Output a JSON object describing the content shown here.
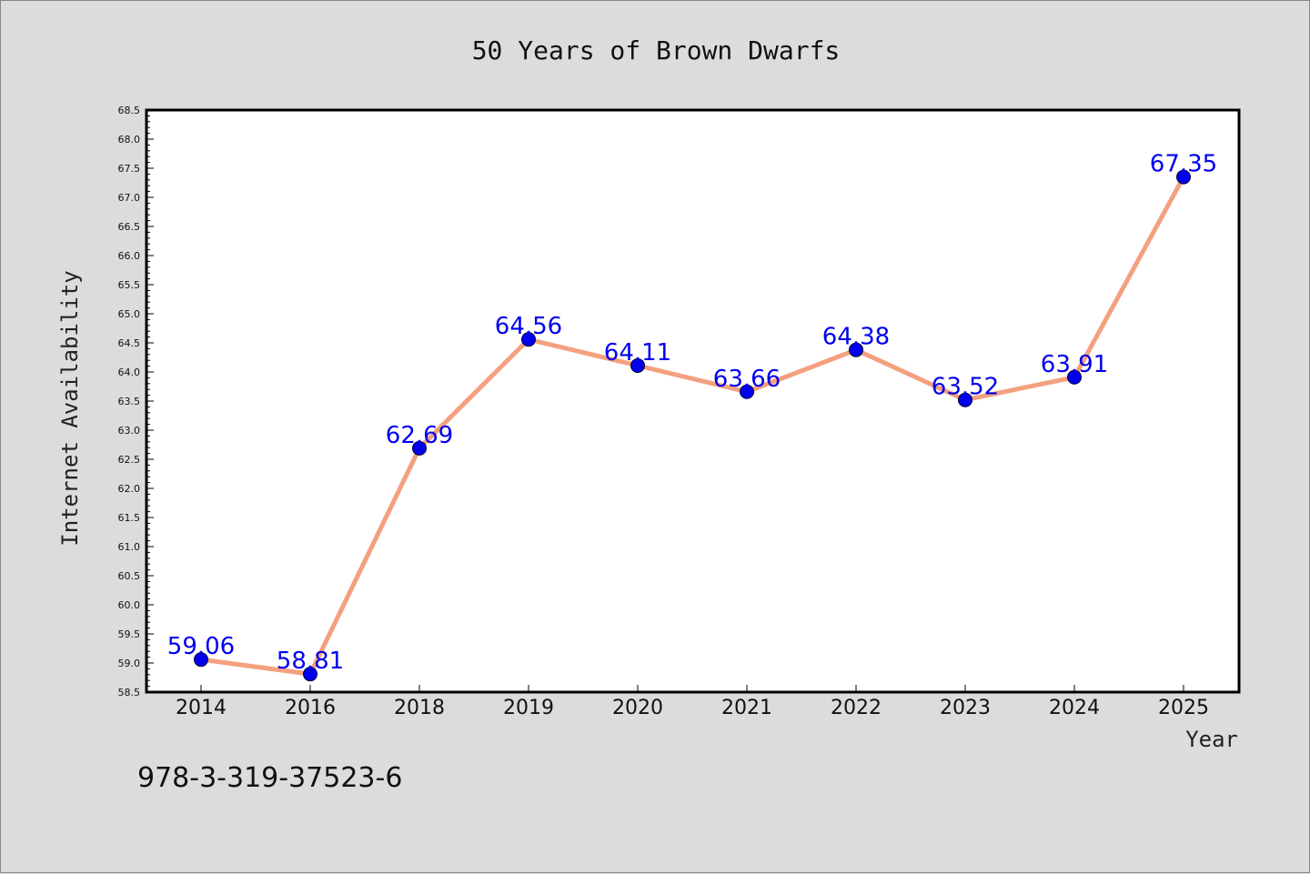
{
  "chart_data": {
    "type": "line",
    "title": "50 Years of Brown Dwarfs",
    "xlabel": "Year",
    "ylabel": "Internet Availability",
    "categories": [
      "2014",
      "2016",
      "2018",
      "2019",
      "2020",
      "2021",
      "2022",
      "2023",
      "2024",
      "2025"
    ],
    "series": [
      {
        "values": [
          59.06,
          58.81,
          62.69,
          64.56,
          64.11,
          63.66,
          64.38,
          63.52,
          63.91,
          67.35
        ],
        "line_color": "#f4a07f",
        "marker_color": "#0000ee",
        "label_color": "#0000ee"
      }
    ],
    "ylim": [
      58.5,
      68.5
    ],
    "yticks": [
      "58.5",
      "59.0",
      "59.5",
      "60.0",
      "60.5",
      "61.0",
      "61.5",
      "62.0",
      "62.5",
      "63.0",
      "63.5",
      "64.0",
      "64.5",
      "65.0",
      "65.5",
      "66.0",
      "66.5",
      "67.0",
      "67.5",
      "68.0",
      "68.5"
    ],
    "grid": false,
    "data_labels": [
      "59.06",
      "58.81",
      "62.69",
      "64.56",
      "64.11",
      "63.66",
      "64.38",
      "63.52",
      "63.91",
      "67.35"
    ]
  },
  "footnote": "978-3-319-37523-6"
}
